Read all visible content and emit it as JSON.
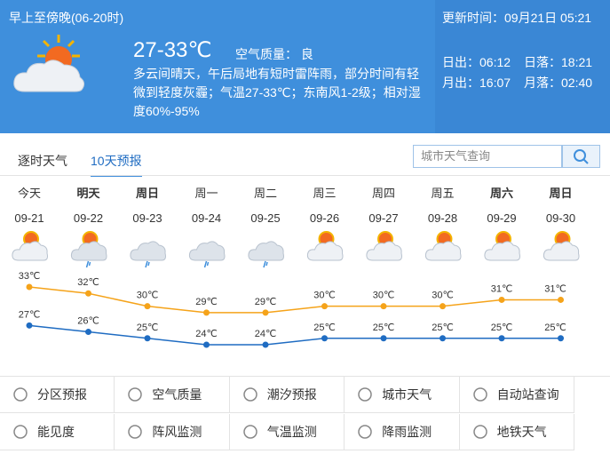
{
  "header": {
    "period": "早上至傍晚(06-20时)",
    "update_label": "更新时间：",
    "update_time": "09月21日 05:21",
    "temperature": "27-33℃",
    "air_label": "空气质量：",
    "air_value": "良",
    "description": [
      "多云间晴天，午后局地有短时雷阵雨，部分时间有轻",
      "微到轻度灰霾；气温27-33℃；东南风1-2级；相对湿",
      "度60%-95%"
    ],
    "sunrise_label": "日出：",
    "sunrise": "06:12",
    "sunset_label": "日落：",
    "sunset": "18:21",
    "moonrise_label": "月出：",
    "moonrise": "16:07",
    "moonset_label": "月落：",
    "moonset": "02:40"
  },
  "tabs": [
    "逐时天气",
    "10天预报"
  ],
  "active_tab": 1,
  "search": {
    "placeholder": "城市天气查询"
  },
  "forecast": {
    "weekdays": [
      "今天",
      "明天",
      "周日",
      "周一",
      "周二",
      "周三",
      "周四",
      "周五",
      "周六",
      "周日"
    ],
    "bold": [
      false,
      true,
      true,
      false,
      false,
      false,
      false,
      false,
      true,
      true
    ],
    "dates": [
      "09-21",
      "09-22",
      "09-23",
      "09-24",
      "09-25",
      "09-26",
      "09-27",
      "09-28",
      "09-29",
      "09-30"
    ],
    "icons": [
      "sun-cloud",
      "sun-rain",
      "rain",
      "rain",
      "rain",
      "sun-cloud",
      "sun-cloud",
      "sun-cloud",
      "sun-cloud",
      "sun-cloud"
    ],
    "high": {
      "color": "#f5a31a",
      "values": [
        33,
        32,
        30,
        29,
        29,
        30,
        30,
        30,
        31,
        31
      ],
      "value_labels": [
        "33℃",
        "32℃",
        "30℃",
        "29℃",
        "29℃",
        "30℃",
        "30℃",
        "30℃",
        "31℃",
        "31℃"
      ]
    },
    "low": {
      "color": "#1f6cc2",
      "values": [
        27,
        26,
        25,
        24,
        24,
        25,
        25,
        25,
        25,
        25
      ],
      "value_labels": [
        "27℃",
        "26℃",
        "25℃",
        "24℃",
        "24℃",
        "25℃",
        "25℃",
        "25℃",
        "25℃",
        "25℃"
      ]
    }
  },
  "links": [
    "分区预报",
    "空气质量",
    "潮汐预报",
    "城市天气",
    "自动站查询",
    "能见度",
    "阵风监测",
    "气温监测",
    "降雨监测",
    "地铁天气"
  ]
}
